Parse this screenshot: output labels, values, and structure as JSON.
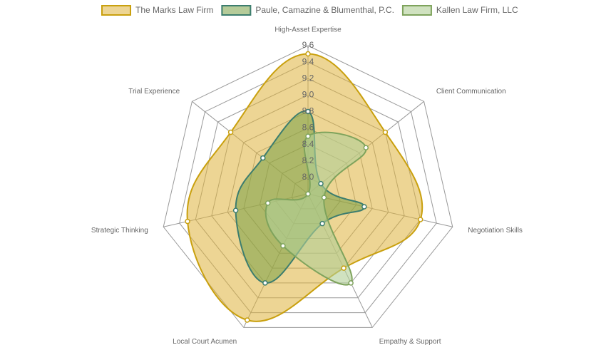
{
  "chart_data": {
    "type": "radar",
    "categories": [
      "High-Asset Expertise",
      "Client Communication",
      "Negotiation Skills",
      "Empathy & Support",
      "Local Court Acumen",
      "Strategic Thinking",
      "Trial Experience"
    ],
    "series": [
      {
        "name": "The Marks Law Firm",
        "color": "#c9a00e",
        "fill": "rgba(222,178,60,0.55)",
        "values": [
          9.5,
          9.0,
          9.2,
          8.8,
          9.5,
          9.3,
          9.0
        ]
      },
      {
        "name": "Paule, Camazine & Blumenthal, P.C.",
        "color": "#3c7d6e",
        "fill": "rgba(120,160,70,0.55)",
        "values": [
          8.8,
          8.0,
          8.5,
          8.2,
          9.0,
          8.7,
          8.5
        ]
      },
      {
        "name": "Kallen Law Firm, LLC",
        "color": "#7ea35c",
        "fill": "rgba(176,206,150,0.6)",
        "values": [
          8.5,
          8.7,
          8.0,
          9.0,
          8.5,
          8.3,
          7.8
        ]
      }
    ],
    "ylim": [
      7.8,
      9.6
    ],
    "yticks": [
      {
        "value": 8.0,
        "label": "8.0"
      },
      8.2,
      8.4,
      8.6,
      8.8,
      {
        "value": 9.0,
        "label": "9.0"
      },
      9.2,
      9.4,
      9.6
    ],
    "grid": true,
    "legend": "top"
  }
}
